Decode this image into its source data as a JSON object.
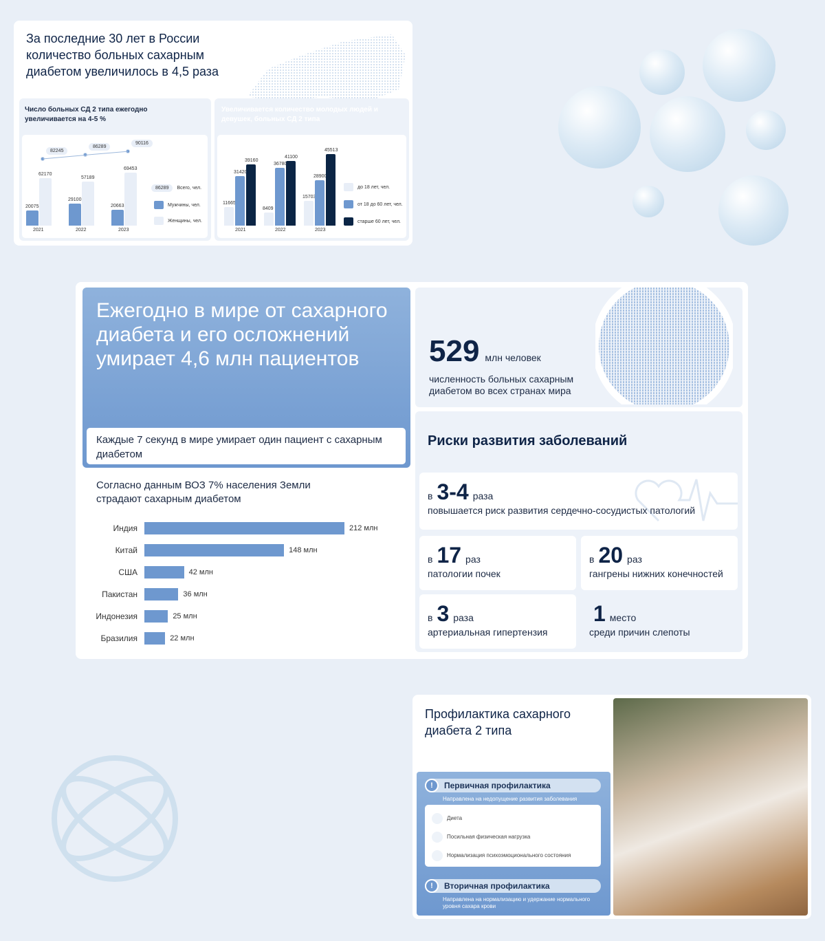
{
  "card1": {
    "title": "За последние 30 лет в России количество больных сахарным диабетом увеличилось в 4,5 раза",
    "left_title": "Число больных СД 2 типа ежегодно увеличивается на 4-5 %",
    "right_title": "Увеличивается количество молодых людей и девушек, больных СД 2 типа"
  },
  "card2": {
    "headline": "Ежегодно в мире от сахарного диабета и его осложнений умирает 4,6 млн пациентов",
    "note": "Каждые 7 секунд в мире умирает один пациент с сахарным диабетом",
    "who_text": "Согласно данным ВОЗ 7% населения Земли страдают сахарным диабетом",
    "stat_number": "529",
    "stat_unit": "млн человек",
    "stat_desc": "численность больных сахарным диабетом во всех странах мира",
    "risks_title": "Риски развития заболеваний",
    "risks": [
      {
        "prefix": "в",
        "value": "3-4",
        "suffix": "раза",
        "desc": "повышается риск развития сердечно-сосудистых патологий"
      },
      {
        "prefix": "в",
        "value": "17",
        "suffix": "раз",
        "desc": "патологии почек"
      },
      {
        "prefix": "в",
        "value": "20",
        "suffix": "раз",
        "desc": "гангрены нижних конечностей"
      },
      {
        "prefix": "в",
        "value": "3",
        "suffix": "раза",
        "desc": "артериальная гипертензия"
      },
      {
        "prefix": "",
        "value": "1",
        "suffix": "место",
        "desc": "среди причин слепоты"
      }
    ]
  },
  "card3": {
    "title": "Профилактика сахарного диабета 2 типа",
    "primary": "Первичная профилактика",
    "primary_desc": "Направлена на недопущение развития заболевания",
    "items": [
      "Диета",
      "Посильная физическая нагрузка",
      "Нормализация психоэмоционального состояния"
    ],
    "secondary": "Вторичная профилактика",
    "secondary_desc": "Направлена на нормализацию и удержание нормального уровня сахара крови"
  },
  "colors": {
    "accent": "#6e98cf",
    "dark": "#0b2545",
    "light": "#e8eef7"
  },
  "chart_data": [
    {
      "type": "bar",
      "categories": [
        "2021",
        "2022",
        "2023"
      ],
      "series": [
        {
          "name": "Мужчины, чел.",
          "values": [
            20075,
            29100,
            20663
          ]
        },
        {
          "name": "Женщины, чел.",
          "values": [
            62170,
            57189,
            69453
          ]
        }
      ],
      "line": {
        "name": "Всего, чел.",
        "values": [
          82245,
          86289,
          90116
        ]
      },
      "legend_sample": "86289",
      "legend": "right"
    },
    {
      "type": "bar",
      "categories": [
        "2021",
        "2022",
        "2023"
      ],
      "series": [
        {
          "name": "до 18 лет, чел.",
          "values": [
            11665,
            8409,
            15703
          ]
        },
        {
          "name": "от 18 до 60 лет, чел.",
          "values": [
            31420,
            36780,
            28900
          ]
        },
        {
          "name": "старше 60 лет, чел.",
          "values": [
            39160,
            41100,
            45513
          ]
        }
      ],
      "legend": "right"
    },
    {
      "type": "bar",
      "orientation": "horizontal",
      "categories": [
        "Индия",
        "Китай",
        "США",
        "Пакистан",
        "Индонезия",
        "Бразилия"
      ],
      "values": [
        212,
        148,
        42,
        36,
        25,
        22
      ],
      "value_labels": [
        "212 млн",
        "148 млн",
        "42 млн",
        "36 млн",
        "25 млн",
        "22 млн"
      ]
    }
  ]
}
